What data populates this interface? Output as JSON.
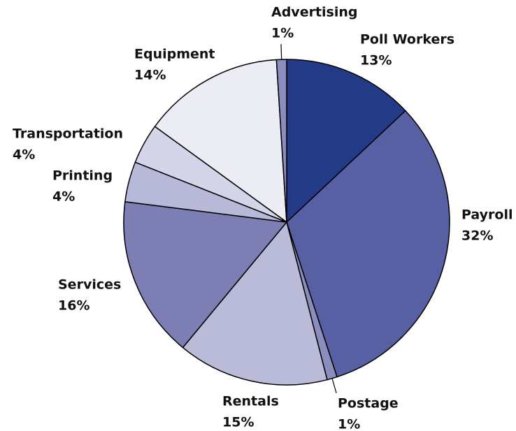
{
  "chart_data": {
    "type": "pie",
    "categories": [
      "Poll Workers",
      "Payroll",
      "Postage",
      "Rentals",
      "Services",
      "Printing",
      "Transportation",
      "Equipment",
      "Advertising"
    ],
    "values": [
      13,
      32,
      1,
      15,
      16,
      4,
      4,
      14,
      1
    ],
    "value_labels": [
      "13%",
      "32%",
      "1%",
      "15%",
      "16%",
      "4%",
      "4%",
      "14%",
      "1%"
    ],
    "colors": [
      "#233a87",
      "#5660a3",
      "#8a8dbd",
      "#babbd9",
      "#7c7eb4",
      "#b8b9d8",
      "#d4d5e8",
      "#ececf5",
      "#8a8dbd"
    ]
  }
}
